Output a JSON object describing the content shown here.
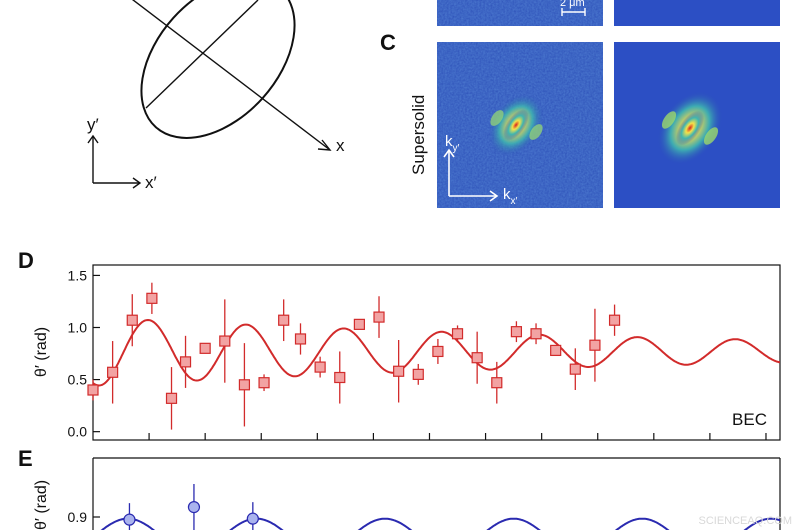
{
  "figure": {
    "panel_labels": {
      "c": "C",
      "d": "D",
      "e": "E"
    },
    "schematic": {
      "x_label": "x",
      "xprime_label": "x′",
      "yprime_label": "y′"
    },
    "images": {
      "row_label": "Supersolid",
      "scalebar": "2 μm",
      "kx_label": "k",
      "kx_sub": "x′",
      "ky_label": "k",
      "ky_sub": "y′",
      "colors": {
        "low": "#2d50b8",
        "mid": "#3fb6b0",
        "hot": "#f4e24a",
        "peak": "#d7201d"
      }
    },
    "watermark": "SCIENCEAQ.COM"
  },
  "chart_data": [
    {
      "type": "scatter",
      "panel": "D",
      "ylabel": "θ′ (rad)",
      "annotation": "BEC",
      "ylim": [
        -0.08,
        1.6
      ],
      "xlim": [
        0,
        24.5
      ],
      "yticks": [
        "0.0",
        "0.5",
        "1.0",
        "1.5"
      ],
      "yticks_values": [
        0.0,
        0.5,
        1.0,
        1.5
      ],
      "color": "#d22b2b",
      "marker_fill": "#f2a3a3",
      "series": [
        {
          "points": [
            {
              "x": 0.0,
              "y": 0.4,
              "err": 0.1
            },
            {
              "x": 0.7,
              "y": 0.57,
              "err": 0.3
            },
            {
              "x": 1.4,
              "y": 1.07,
              "err": 0.25
            },
            {
              "x": 2.1,
              "y": 1.28,
              "err": 0.15
            },
            {
              "x": 2.8,
              "y": 0.32,
              "err": 0.3
            },
            {
              "x": 3.3,
              "y": 0.67,
              "err": 0.25
            },
            {
              "x": 4.0,
              "y": 0.8,
              "err": 0.05
            },
            {
              "x": 4.7,
              "y": 0.87,
              "err": 0.4
            },
            {
              "x": 5.4,
              "y": 0.45,
              "err": 0.4
            },
            {
              "x": 6.1,
              "y": 0.47,
              "err": 0.08
            },
            {
              "x": 6.8,
              "y": 1.07,
              "err": 0.2
            },
            {
              "x": 7.4,
              "y": 0.89,
              "err": 0.15
            },
            {
              "x": 8.1,
              "y": 0.62,
              "err": 0.1
            },
            {
              "x": 8.8,
              "y": 0.52,
              "err": 0.25
            },
            {
              "x": 9.5,
              "y": 1.03,
              "err": 0.05
            },
            {
              "x": 10.2,
              "y": 1.1,
              "err": 0.2
            },
            {
              "x": 10.9,
              "y": 0.58,
              "err": 0.3
            },
            {
              "x": 11.6,
              "y": 0.55,
              "err": 0.1
            },
            {
              "x": 12.3,
              "y": 0.77,
              "err": 0.12
            },
            {
              "x": 13.0,
              "y": 0.94,
              "err": 0.08
            },
            {
              "x": 13.7,
              "y": 0.71,
              "err": 0.25
            },
            {
              "x": 14.4,
              "y": 0.47,
              "err": 0.2
            },
            {
              "x": 15.1,
              "y": 0.96,
              "err": 0.1
            },
            {
              "x": 15.8,
              "y": 0.94,
              "err": 0.1
            },
            {
              "x": 16.5,
              "y": 0.78,
              "err": 0.05
            },
            {
              "x": 17.2,
              "y": 0.6,
              "err": 0.2
            },
            {
              "x": 17.9,
              "y": 0.83,
              "err": 0.35
            },
            {
              "x": 18.6,
              "y": 1.07,
              "err": 0.15
            }
          ],
          "fit": {
            "offset": 0.77,
            "amplitude": 0.33,
            "decay": 0.045,
            "omega": 1.8,
            "phase": -3.55,
            "x_end": 19.3
          }
        }
      ]
    },
    {
      "type": "scatter",
      "panel": "E",
      "ylabel": "θ′ (rad)",
      "ylim": [
        0.8,
        1.0
      ],
      "yticks": [
        "0.9"
      ],
      "yticks_values": [
        0.9
      ],
      "color": "#2a2ab0",
      "marker_fill": "#aab3ee",
      "series": [
        {
          "points": [
            {
              "x": 1.3,
              "y": 0.892,
              "err": 0.05
            },
            {
              "x": 3.6,
              "y": 0.93,
              "err": 0.07
            },
            {
              "x": 5.7,
              "y": 0.895,
              "err": 0.05
            }
          ]
        }
      ]
    }
  ]
}
